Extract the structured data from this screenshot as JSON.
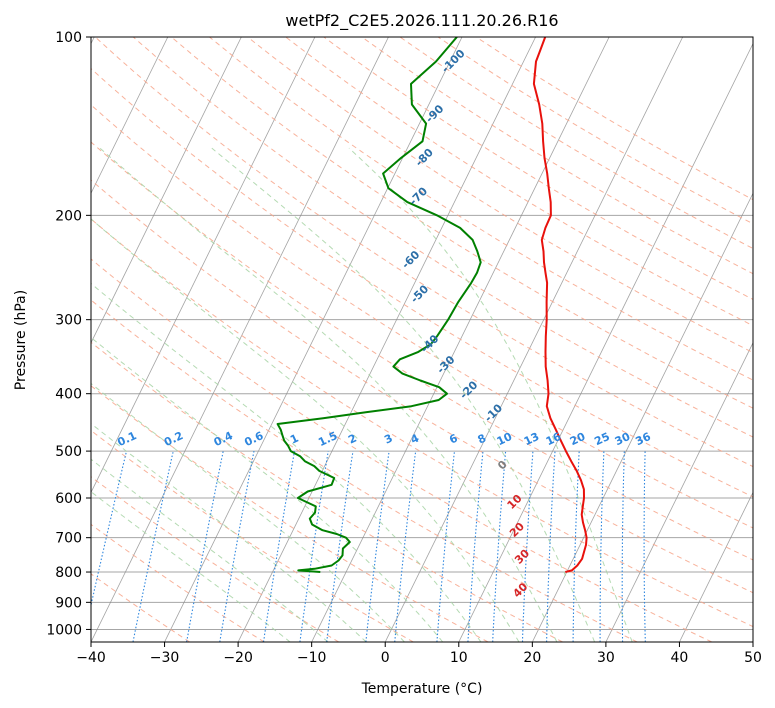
{
  "chart_data": {
    "type": "line",
    "title": "wetPf2_C2E5.2026.111.20.26.R16",
    "xlabel": "Temperature (°C)",
    "ylabel": "Pressure (hPa)",
    "xlim": [
      -40,
      50
    ],
    "ylim": [
      1050,
      100
    ],
    "x_ticks": [
      -40,
      -30,
      -20,
      -10,
      0,
      10,
      20,
      30,
      40,
      50
    ],
    "y_ticks": [
      100,
      200,
      300,
      400,
      500,
      600,
      700,
      800,
      900,
      1000
    ],
    "x_tick_labels": [
      "−40",
      "−30",
      "−20",
      "−10",
      "0",
      "10",
      "20",
      "30",
      "40",
      "50"
    ],
    "y_tick_labels": [
      "100",
      "200",
      "300",
      "400",
      "500",
      "600",
      "700",
      "800",
      "900",
      "1000"
    ],
    "skew_per_log_p": 17.2,
    "series": [
      {
        "name": "temperature",
        "color": "#e8110c",
        "p": [
          800,
          795,
          780,
          760,
          740,
          720,
          700,
          680,
          660,
          640,
          620,
          600,
          580,
          560,
          540,
          520,
          500,
          480,
          460,
          440,
          420,
          400,
          380,
          360,
          340,
          320,
          300,
          280,
          260,
          250,
          240,
          230,
          220,
          210,
          200,
          190,
          180,
          170,
          160,
          150,
          140,
          130,
          120,
          110,
          105,
          100
        ],
        "t": [
          19.8,
          20.6,
          21.0,
          21.2,
          21.0,
          20.8,
          20.4,
          19.7,
          18.9,
          18.2,
          17.8,
          17.4,
          16.8,
          15.8,
          14.6,
          13.2,
          11.8,
          10.4,
          9.0,
          7.5,
          6.2,
          5.6,
          4.6,
          3.4,
          2.4,
          1.4,
          0.4,
          -0.8,
          -2.0,
          -2.9,
          -3.8,
          -4.6,
          -5.6,
          -5.9,
          -6.0,
          -6.9,
          -8.1,
          -9.3,
          -10.7,
          -12.0,
          -13.3,
          -15.0,
          -17.1,
          -18.3,
          -18.5,
          -18.7
        ]
      },
      {
        "name": "dewpoint",
        "color": "#008000",
        "p": [
          800,
          795,
          790,
          780,
          765,
          750,
          730,
          712,
          700,
          690,
          680,
          665,
          650,
          635,
          620,
          600,
          585,
          570,
          555,
          540,
          530,
          520,
          510,
          500,
          490,
          480,
          470,
          460,
          450,
          440,
          430,
          420,
          410,
          400,
          390,
          380,
          370,
          360,
          350,
          340,
          330,
          320,
          300,
          280,
          260,
          250,
          240,
          230,
          220,
          210,
          200,
          190,
          180,
          170,
          160,
          150,
          140,
          130,
          120,
          110,
          100
        ],
        "td": [
          -13.5,
          -16.6,
          -14.5,
          -12.4,
          -11.8,
          -11.6,
          -12.0,
          -11.5,
          -12.3,
          -13.8,
          -16.0,
          -17.8,
          -18.5,
          -18.2,
          -18.5,
          -21.5,
          -20.6,
          -17.8,
          -17.9,
          -20.4,
          -21.4,
          -23.0,
          -24.0,
          -25.6,
          -26.3,
          -27.2,
          -27.8,
          -28.4,
          -29.2,
          -23.4,
          -18.0,
          -12.2,
          -8.9,
          -8.2,
          -9.7,
          -12.7,
          -15.6,
          -17.3,
          -16.9,
          -14.9,
          -13.7,
          -13.4,
          -13.0,
          -12.8,
          -12.3,
          -12.2,
          -12.4,
          -13.6,
          -15.0,
          -17.5,
          -21.5,
          -26.4,
          -29.9,
          -31.6,
          -30.2,
          -28.4,
          -29.1,
          -32.3,
          -33.8,
          -31.9,
          -30.7
        ]
      }
    ],
    "dry_adiabat_labels": [
      "-100",
      "-90",
      "-80",
      "-70",
      "-60",
      "-50",
      "-40",
      "-30",
      "-20",
      "-10",
      "0",
      "10",
      "20",
      "30",
      "40"
    ],
    "mixing_ratio_labels": [
      "0.1",
      "0.2",
      "0.4",
      "0.6",
      "1",
      "1.5",
      "2",
      "3",
      "4",
      "6",
      "8",
      "10",
      "13",
      "16",
      "20",
      "25",
      "30",
      "36"
    ],
    "colors": {
      "isotherm": "#8c8c8c",
      "isobar": "#a6a6a6",
      "dry_adiabat": "#f7a48a",
      "moist_adiabat": "#a7d3a5",
      "mixing_ratio": "#2e86de",
      "dry_label": "#2c6fa8",
      "positive_label": "#d62728",
      "zero_label": "#7f7f7f",
      "mixing_label": "#2e86de",
      "thick_curve": "#e0cdb0"
    }
  }
}
